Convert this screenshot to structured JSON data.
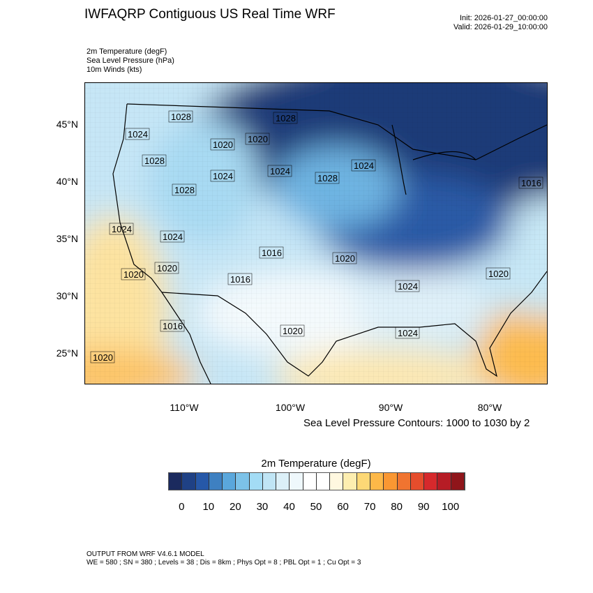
{
  "header": {
    "title": "IWFAQRP Contiguous US Real Time WRF",
    "init": "Init: 2026-01-27_00:00:00",
    "valid": "Valid: 2026-01-29_10:00:00"
  },
  "fields": [
    "2m Temperature   (degF)",
    "Sea Level Pressure   (hPa)",
    "10m Winds   (kts)"
  ],
  "map": {
    "lat_labels": [
      "45°N",
      "40°N",
      "35°N",
      "30°N",
      "25°N"
    ],
    "lon_labels": [
      "110°W",
      "100°W",
      "90°W",
      "80°W"
    ],
    "pressure_labels": [
      "1024",
      "1028",
      "1028",
      "1020",
      "1020",
      "1028",
      "1024",
      "1028",
      "1024",
      "1024",
      "1028",
      "1024",
      "1024",
      "1016",
      "1020",
      "1020",
      "1020",
      "1016",
      "1020",
      "1024",
      "1016",
      "1020",
      "1024",
      "1020",
      "1016"
    ]
  },
  "slp_caption": "Sea Level Pressure Contours: 1000 to 1030 by 2",
  "colorbar": {
    "title": "2m Temperature  (degF)",
    "labels": [
      "0",
      "10",
      "20",
      "30",
      "40",
      "50",
      "60",
      "70",
      "80",
      "90",
      "100"
    ],
    "colors": [
      "#1b2a5e",
      "#1f4185",
      "#2658a8",
      "#3e80c1",
      "#5aa7dc",
      "#7cc2e8",
      "#a3dcf5",
      "#c0e5f5",
      "#dcf0f8",
      "#eff8fc",
      "#ffffff",
      "#ffffff",
      "#fff8e0",
      "#fdeeb0",
      "#fdd876",
      "#fdb848",
      "#fa9732",
      "#f07430",
      "#e54d2c",
      "#d6292c",
      "#b61c25",
      "#8f151a"
    ]
  },
  "footer": {
    "line1": "OUTPUT FROM WRF V4.6.1 MODEL",
    "line2": "WE = 580 ; SN = 380 ; Levels = 38 ; Dis = 8km ; Phys Opt = 8 ; PBL Opt = 1 ; Cu Opt = 3"
  }
}
